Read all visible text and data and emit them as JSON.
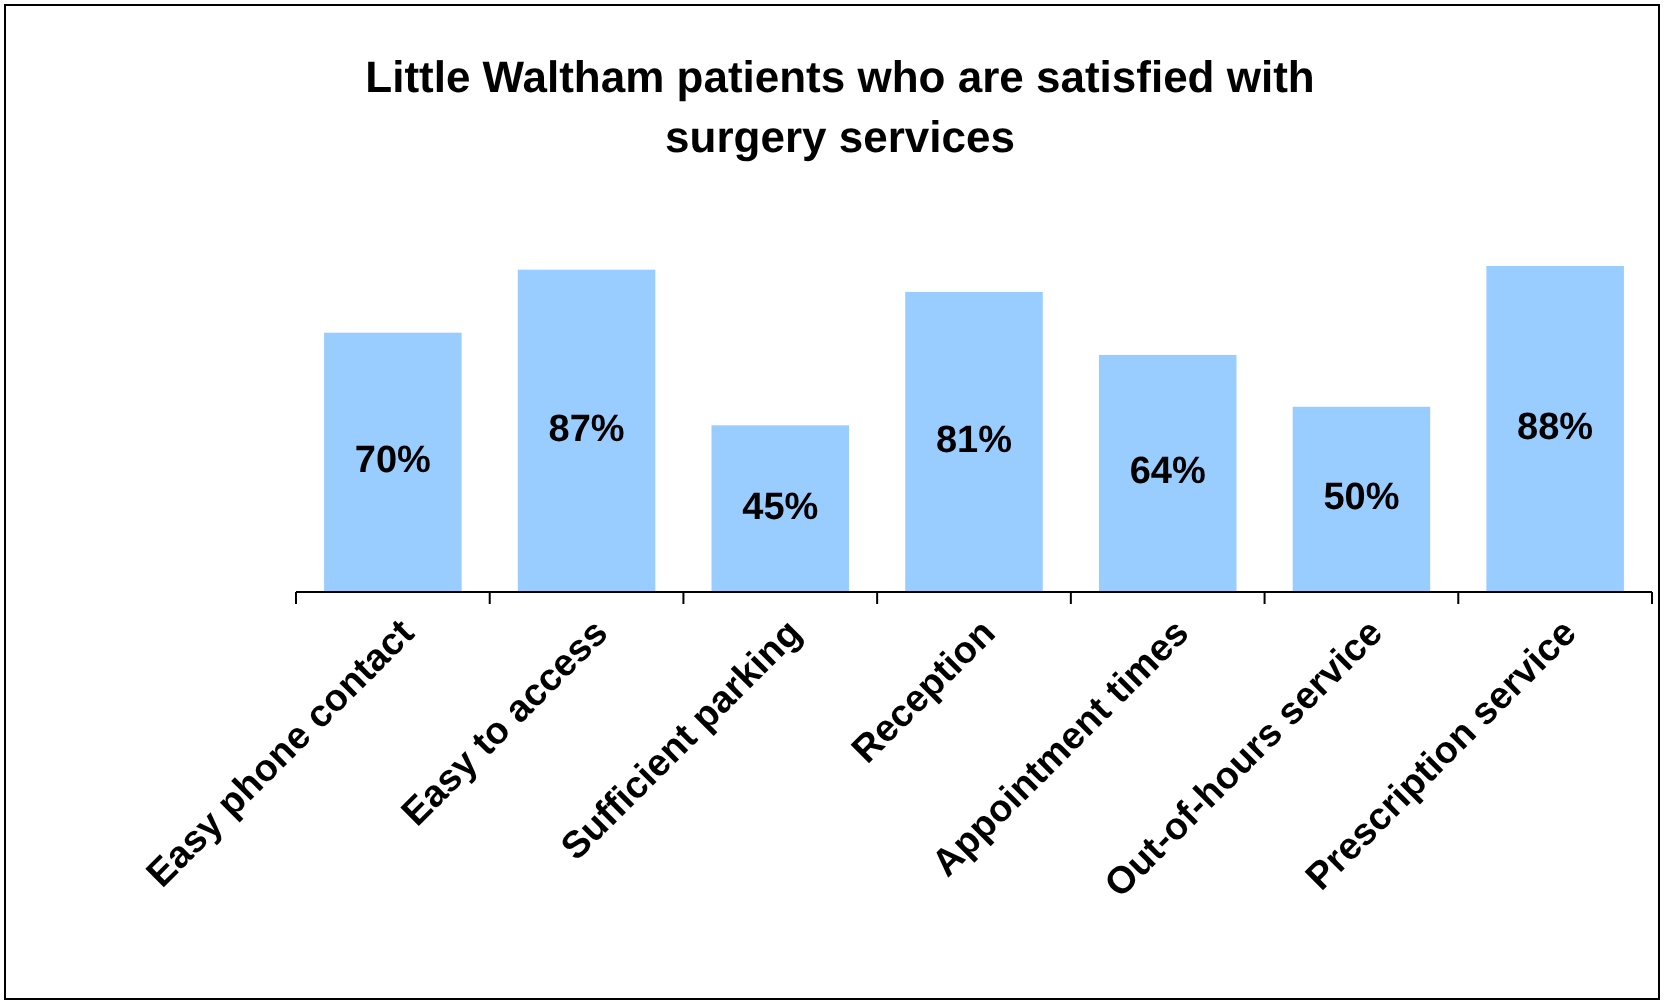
{
  "chart_data": {
    "type": "bar",
    "title": "Little Waltham patients who are satisfied with surgery services",
    "categories": [
      "Easy phone contact",
      "Easy to access",
      "Sufficient parking",
      "Reception",
      "Appointment times",
      "Out-of-hours service",
      "Prescription service"
    ],
    "values": [
      70,
      87,
      45,
      81,
      64,
      50,
      88
    ],
    "value_labels": [
      "70%",
      "87%",
      "45%",
      "81%",
      "64%",
      "50%",
      "88%"
    ],
    "color": "#99ccff"
  }
}
